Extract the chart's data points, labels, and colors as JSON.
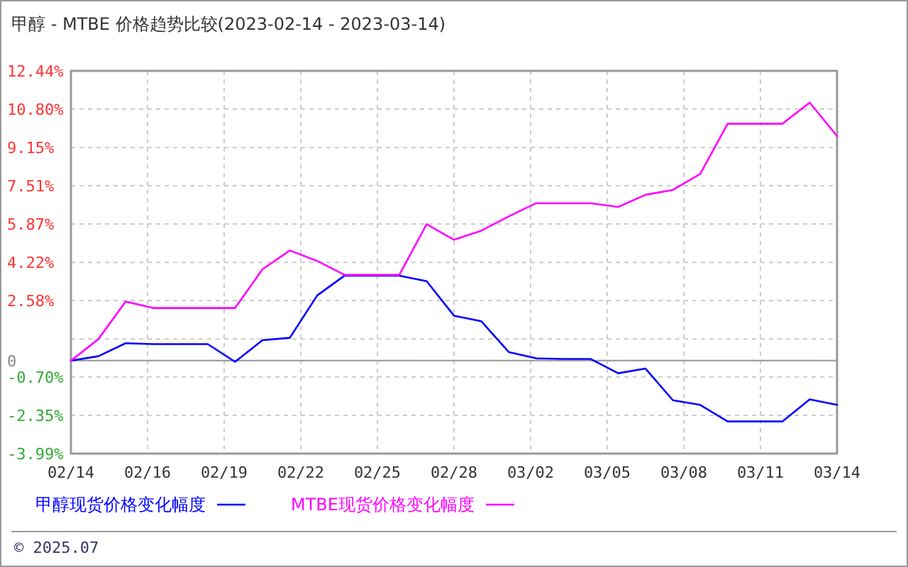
{
  "chart_data": {
    "type": "line",
    "title": "甲醇 - MTBE 价格趋势比较(2023-02-14 - 2023-03-14)",
    "x": [
      "2023-02-14",
      "2023-02-15",
      "2023-02-16",
      "2023-02-17",
      "2023-02-18",
      "2023-02-19",
      "2023-02-20",
      "2023-02-21",
      "2023-02-22",
      "2023-02-23",
      "2023-02-24",
      "2023-02-25",
      "2023-02-26",
      "2023-02-27",
      "2023-02-28",
      "2023-03-01",
      "2023-03-02",
      "2023-03-03",
      "2023-03-04",
      "2023-03-05",
      "2023-03-06",
      "2023-03-07",
      "2023-03-08",
      "2023-03-09",
      "2023-03-10",
      "2023-03-11",
      "2023-03-12",
      "2023-03-13",
      "2023-03-14"
    ],
    "series": [
      {
        "name": "甲醇现货价格变化幅度",
        "color": "#0000ff",
        "values": [
          0,
          0.19,
          0.75,
          0.71,
          0.71,
          0.71,
          -0.05,
          0.88,
          0.98,
          2.8,
          3.65,
          3.65,
          3.65,
          3.41,
          1.93,
          1.69,
          0.37,
          0.1,
          0.07,
          0.07,
          -0.54,
          -0.34,
          -1.7,
          -1.9,
          -2.61,
          -2.61,
          -2.61,
          -1.66,
          -1.9
        ]
      },
      {
        "name": "MTBE现货价格变化幅度",
        "color": "#ff00ff",
        "values": [
          0,
          0.92,
          2.54,
          2.26,
          2.26,
          2.26,
          2.26,
          3.92,
          4.73,
          4.28,
          3.68,
          3.68,
          3.68,
          5.86,
          5.19,
          5.58,
          6.19,
          6.76,
          6.76,
          6.76,
          6.6,
          7.12,
          7.33,
          8.02,
          10.17,
          10.17,
          10.17,
          11.08,
          9.64
        ]
      }
    ],
    "xlim": [
      "2023-02-14",
      "2023-03-14"
    ],
    "xticks": [
      {
        "value": "2023-02-14T00:00",
        "label": "02/14"
      },
      {
        "value": "2023-02-16T19:12",
        "label": "02/16"
      },
      {
        "value": "2023-02-19T14:24",
        "label": "02/19"
      },
      {
        "value": "2023-02-22T09:36",
        "label": "02/22"
      },
      {
        "value": "2023-02-25T04:48",
        "label": "02/25"
      },
      {
        "value": "2023-02-28T00:00",
        "label": "02/28"
      },
      {
        "value": "2023-03-02T19:12",
        "label": "03/02"
      },
      {
        "value": "2023-03-05T14:24",
        "label": "03/05"
      },
      {
        "value": "2023-03-08T09:36",
        "label": "03/08"
      },
      {
        "value": "2023-03-11T04:48",
        "label": "03/11"
      },
      {
        "value": "2023-03-14T00:00",
        "label": "03/14"
      }
    ],
    "ylim": [
      -3.99,
      12.44
    ],
    "yticks": [
      {
        "value": 12.44,
        "label": "12.44%"
      },
      {
        "value": 10.8,
        "label": "10.80%"
      },
      {
        "value": 9.15,
        "label": "9.15%"
      },
      {
        "value": 7.51,
        "label": "7.51%"
      },
      {
        "value": 5.87,
        "label": "5.87%"
      },
      {
        "value": 4.22,
        "label": "4.22%"
      },
      {
        "value": 2.58,
        "label": "2.58%"
      },
      {
        "value": 0.93,
        "label": null
      },
      0,
      {
        "value": -0.7,
        "label": "-0.70%"
      },
      {
        "value": -2.35,
        "label": "-2.35%"
      },
      {
        "value": -3.99,
        "label": "-3.99%"
      }
    ],
    "grid": true,
    "legend": "bottom",
    "line_style": "solid",
    "marker": "none",
    "annotations": [
      "© 2025.07"
    ]
  }
}
